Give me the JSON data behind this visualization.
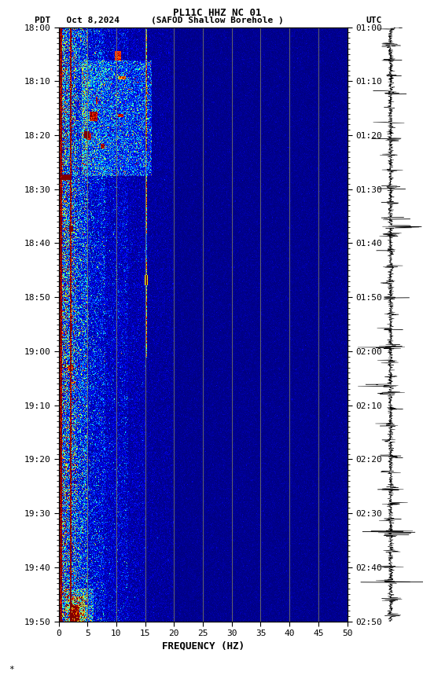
{
  "title_line1": "PL11C HHZ NC 01",
  "title_line2_left": "PDT   Oct 8,2024",
  "title_line2_center": "(SAFOD Shallow Borehole )",
  "title_line2_right": "UTC",
  "xlabel": "FREQUENCY (HZ)",
  "freq_min": 0,
  "freq_max": 50,
  "freq_ticks": [
    0,
    5,
    10,
    15,
    20,
    25,
    30,
    35,
    40,
    45,
    50
  ],
  "time_labels_left": [
    "18:00",
    "18:10",
    "18:20",
    "18:30",
    "18:40",
    "18:50",
    "19:00",
    "19:10",
    "19:20",
    "19:30",
    "19:40",
    "19:50"
  ],
  "time_labels_right": [
    "01:00",
    "01:10",
    "01:20",
    "01:30",
    "01:40",
    "01:50",
    "02:00",
    "02:10",
    "02:20",
    "02:30",
    "02:40",
    "02:50"
  ],
  "fig_bg": "#ffffff",
  "vertical_lines_freq": [
    5,
    10,
    15,
    20,
    25,
    30,
    35,
    40,
    45
  ],
  "vertical_lines_color": "#808060",
  "colormap": "jet",
  "noise_seed": 42,
  "vmin": 0.0,
  "vmax": 0.8
}
